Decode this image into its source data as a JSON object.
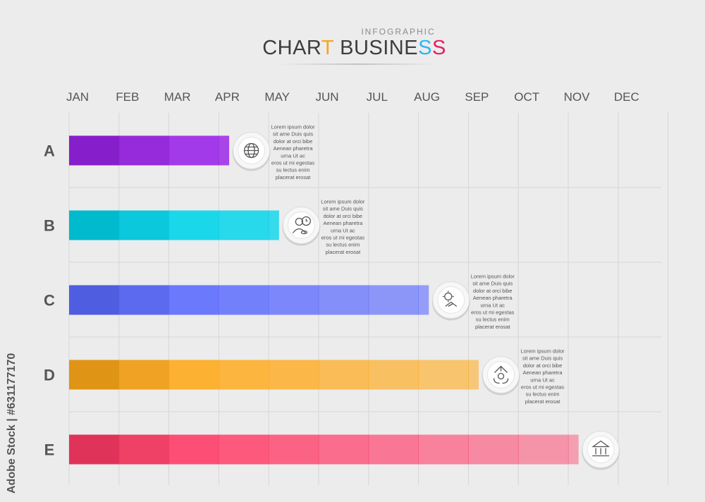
{
  "header": {
    "subtitle": "INFOGRAPHIC",
    "title_parts": [
      {
        "text": "CHAR",
        "color": "#3d3d3d"
      },
      {
        "text": "T",
        "color": "#f5a623"
      },
      {
        "text": " BUSINE",
        "color": "#3d3d3d"
      },
      {
        "text": "S",
        "color": "#29b6f6"
      },
      {
        "text": "S",
        "color": "#e91e63"
      }
    ]
  },
  "watermark": "Adobe Stock | #631177170",
  "chart_data": {
    "type": "bar",
    "orientation": "horizontal",
    "x_axis_position": "top",
    "grid": true,
    "months": [
      "JAN",
      "FEB",
      "MAR",
      "APR",
      "MAY",
      "JUN",
      "JUL",
      "AUG",
      "SEP",
      "OCT",
      "NOV",
      "DEC"
    ],
    "categories": [
      "A",
      "B",
      "C",
      "D",
      "E"
    ],
    "values": [
      3.2,
      4.2,
      7.2,
      8.2,
      10.2
    ],
    "units": "months",
    "bars": [
      {
        "category": "A",
        "value": 3.2,
        "color": "#9a23e8",
        "icon": "globe-icon",
        "description": [
          "Lorem ipsum dolor",
          "sit ame Duis quis",
          "dolor at orci bibe",
          "Aenean pharetra",
          "urna Ut ac",
          "eros ut mi egestas",
          "su lectus enim",
          "placerat erosat"
        ]
      },
      {
        "category": "B",
        "value": 4.2,
        "color": "#00d4ea",
        "icon": "businessman-clock-icon",
        "description": [
          "Lorem ipsum dolor",
          "sit ame Duis quis",
          "dolor at orci bibe",
          "Aenean pharetra",
          "urna Ut ac",
          "eros ut mi egestas",
          "su lectus enim",
          "placerat erosat"
        ]
      },
      {
        "category": "C",
        "value": 7.2,
        "color": "#5a6aff",
        "icon": "gear-handshake-icon",
        "description": [
          "Lorem ipsum dolor",
          "sit ame Duis quis",
          "dolor at orci bibe",
          "Aenean pharetra",
          "urna Ut ac",
          "eros ut mi egestas",
          "su lectus enim",
          "placerat erosat"
        ]
      },
      {
        "category": "D",
        "value": 8.2,
        "color": "#ffa91a",
        "icon": "recycle-gear-icon",
        "description": [
          "Lorem ipsum dolor",
          "sit ame Duis quis",
          "dolor at orci bibe",
          "Aenean pharetra",
          "urna Ut ac",
          "eros ut mi egestas",
          "su lectus enim",
          "placerat erosat"
        ]
      },
      {
        "category": "E",
        "value": 10.2,
        "color": "#ff3b66",
        "icon": "bank-icon",
        "description": []
      }
    ]
  }
}
